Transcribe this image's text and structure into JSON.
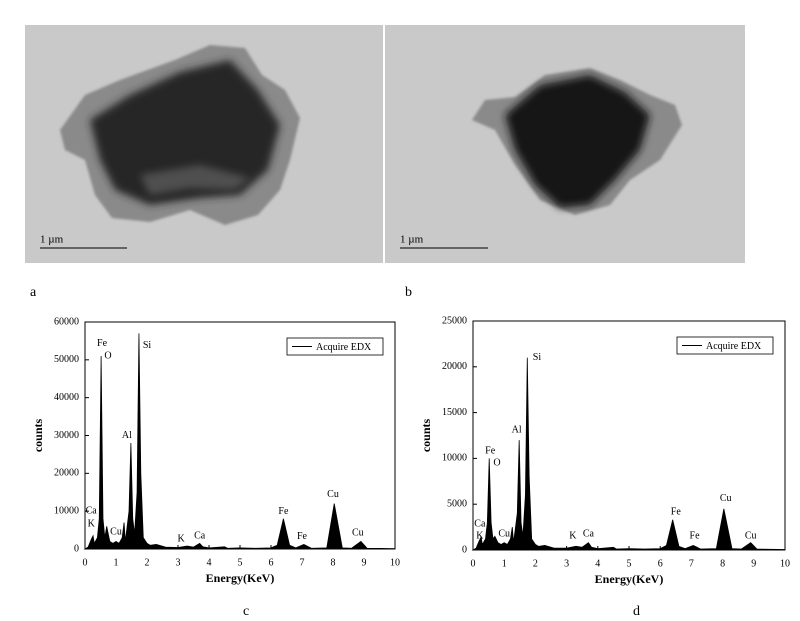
{
  "panels": [
    {
      "label": "a",
      "scale_bar": "1 µm"
    },
    {
      "label": "b",
      "scale_bar": "1 µm"
    },
    {
      "label": "c"
    },
    {
      "label": "d"
    }
  ],
  "chart_data": [
    {
      "type": "line",
      "x_label": "Energy(KeV)",
      "y_label": "counts",
      "legend": "upper right",
      "xlim": [
        0,
        10
      ],
      "xticks": [
        0,
        1,
        2,
        3,
        4,
        5,
        6,
        7,
        8,
        9,
        10
      ],
      "ylim": [
        0,
        60000
      ],
      "yticks": [
        0,
        10000,
        20000,
        30000,
        40000,
        50000,
        60000
      ],
      "series": [
        {
          "name": "Acquire EDX",
          "color": "#000000",
          "x": [
            0,
            0.1,
            0.2,
            0.26,
            0.3,
            0.4,
            0.46,
            0.52,
            0.58,
            0.64,
            0.7,
            0.8,
            0.9,
            1.0,
            1.1,
            1.2,
            1.26,
            1.3,
            1.42,
            1.48,
            1.54,
            1.6,
            1.68,
            1.74,
            1.8,
            1.88,
            2.0,
            2.1,
            2.3,
            2.6,
            3.0,
            3.3,
            3.5,
            3.7,
            3.8,
            4.0,
            4.5,
            4.6,
            5.0,
            5.5,
            6.0,
            6.2,
            6.4,
            6.6,
            6.8,
            7.06,
            7.3,
            7.8,
            8.04,
            8.3,
            8.6,
            8.9,
            9.1,
            9.5,
            10
          ],
          "values": [
            0,
            500,
            2500,
            3500,
            1500,
            3000,
            8000,
            51000,
            8000,
            3000,
            6000,
            2000,
            1500,
            2000,
            1500,
            3000,
            7000,
            2000,
            10000,
            28000,
            8000,
            4000,
            15000,
            57000,
            20000,
            3000,
            1500,
            1000,
            1200,
            500,
            400,
            800,
            500,
            1500,
            600,
            300,
            600,
            200,
            300,
            200,
            300,
            1000,
            8000,
            1000,
            300,
            1200,
            200,
            300,
            12000,
            300,
            200,
            2000,
            200,
            150,
            100
          ]
        }
      ],
      "annotations": [
        {
          "text": "Fe",
          "x": 0.55,
          "y": 54200
        },
        {
          "text": "O",
          "x": 0.74,
          "y": 51000
        },
        {
          "text": "Si",
          "x": 2.0,
          "y": 53700
        },
        {
          "text": "Al",
          "x": 1.35,
          "y": 29900
        },
        {
          "text": "Ca",
          "x": 0.2,
          "y": 10000
        },
        {
          "text": "K",
          "x": 0.2,
          "y": 6600
        },
        {
          "text": "Cu",
          "x": 1.0,
          "y": 4500
        },
        {
          "text": "K",
          "x": 3.1,
          "y": 2600
        },
        {
          "text": "Ca",
          "x": 3.7,
          "y": 3400
        },
        {
          "text": "Fe",
          "x": 6.4,
          "y": 9800
        },
        {
          "text": "Fe",
          "x": 7.0,
          "y": 3200
        },
        {
          "text": "Cu",
          "x": 8.0,
          "y": 14300
        },
        {
          "text": "Cu",
          "x": 8.8,
          "y": 4200
        }
      ]
    },
    {
      "type": "line",
      "x_label": "Energy(KeV)",
      "y_label": "counts",
      "legend": "upper right",
      "xlim": [
        0,
        10
      ],
      "xticks": [
        0,
        1,
        2,
        3,
        4,
        5,
        6,
        7,
        8,
        9,
        10
      ],
      "ylim": [
        0,
        25000
      ],
      "yticks": [
        0,
        5000,
        10000,
        15000,
        20000,
        25000
      ],
      "series": [
        {
          "name": "Acquire EDX",
          "color": "#000000",
          "x": [
            0,
            0.1,
            0.2,
            0.26,
            0.3,
            0.4,
            0.46,
            0.52,
            0.58,
            0.64,
            0.7,
            0.8,
            0.9,
            1.0,
            1.1,
            1.2,
            1.26,
            1.3,
            1.42,
            1.48,
            1.54,
            1.6,
            1.68,
            1.74,
            1.8,
            1.88,
            2.0,
            2.1,
            2.3,
            2.6,
            3.0,
            3.3,
            3.5,
            3.7,
            3.8,
            4.0,
            4.5,
            4.6,
            5.0,
            5.5,
            6.0,
            6.2,
            6.4,
            6.6,
            6.8,
            7.06,
            7.3,
            7.8,
            8.04,
            8.3,
            8.6,
            8.9,
            9.1,
            9.5,
            10
          ],
          "values": [
            0,
            200,
            1000,
            1400,
            600,
            1200,
            3000,
            10000,
            3000,
            1200,
            1500,
            800,
            600,
            800,
            600,
            1200,
            2500,
            800,
            4000,
            12000,
            3000,
            1500,
            6000,
            21000,
            8000,
            1200,
            600,
            400,
            500,
            200,
            200,
            400,
            300,
            800,
            300,
            150,
            300,
            100,
            150,
            100,
            150,
            500,
            3300,
            400,
            150,
            500,
            100,
            150,
            4500,
            150,
            100,
            800,
            100,
            80,
            50
          ]
        }
      ],
      "annotations": [
        {
          "text": "Fe",
          "x": 0.55,
          "y": 10800
        },
        {
          "text": "O",
          "x": 0.77,
          "y": 9500
        },
        {
          "text": "Al",
          "x": 1.4,
          "y": 13100
        },
        {
          "text": "Si",
          "x": 2.05,
          "y": 21000
        },
        {
          "text": "Ca",
          "x": 0.22,
          "y": 2800
        },
        {
          "text": "K",
          "x": 0.22,
          "y": 1500
        },
        {
          "text": "Cu",
          "x": 1.0,
          "y": 1700
        },
        {
          "text": "K",
          "x": 3.2,
          "y": 1500
        },
        {
          "text": "Ca",
          "x": 3.7,
          "y": 1700
        },
        {
          "text": "Fe",
          "x": 6.5,
          "y": 4100
        },
        {
          "text": "Fe",
          "x": 7.1,
          "y": 1500
        },
        {
          "text": "Cu",
          "x": 8.1,
          "y": 5600
        },
        {
          "text": "Cu",
          "x": 8.9,
          "y": 1500
        }
      ]
    }
  ]
}
